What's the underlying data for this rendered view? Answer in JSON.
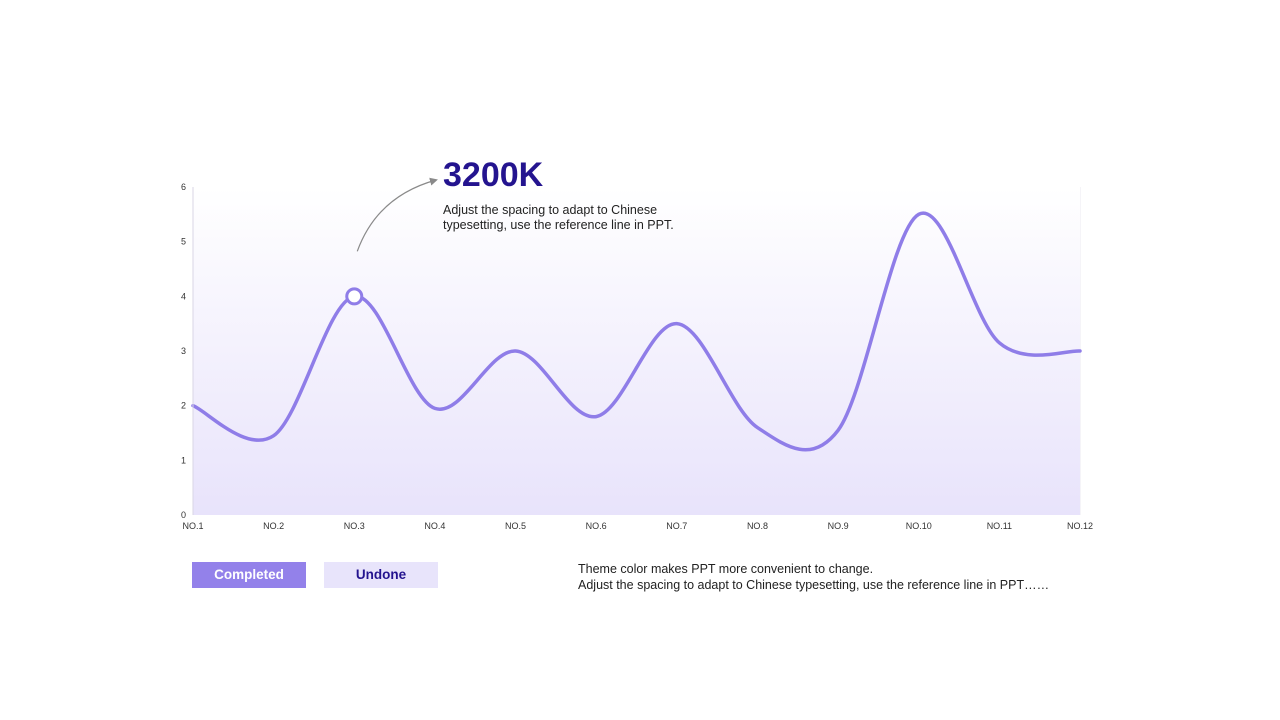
{
  "chart_data": {
    "type": "line",
    "categories": [
      "NO.1",
      "NO.2",
      "NO.3",
      "NO.4",
      "NO.5",
      "NO.6",
      "NO.7",
      "NO.8",
      "NO.9",
      "NO.10",
      "NO.11",
      "NO.12"
    ],
    "series": [
      {
        "values": [
          2.0,
          1.45,
          4.0,
          1.95,
          3.0,
          1.8,
          3.5,
          1.6,
          1.55,
          5.5,
          3.15,
          3.0
        ]
      }
    ],
    "ylim": [
      0,
      6
    ],
    "yticks": [
      "0",
      "1",
      "2",
      "3",
      "4",
      "5",
      "6"
    ],
    "grid": "vertical",
    "highlight_index": 2,
    "line_color": "#8f7de8",
    "area_gradient": [
      "#ffffff",
      "#e8e3fb"
    ]
  },
  "callout": {
    "value": "3200K",
    "line1": "Adjust the spacing to adapt to Chinese",
    "line2": "typesetting, use the reference line in PPT."
  },
  "legend": {
    "completed_label": "Completed",
    "undone_label": "Undone",
    "completed_color": "#9381ea",
    "undone_color": "#e8e4fb"
  },
  "footer": {
    "line1": "Theme color makes PPT more convenient to change.",
    "line2": "Adjust the spacing to adapt to Chinese typesetting, use the reference line in PPT……"
  }
}
